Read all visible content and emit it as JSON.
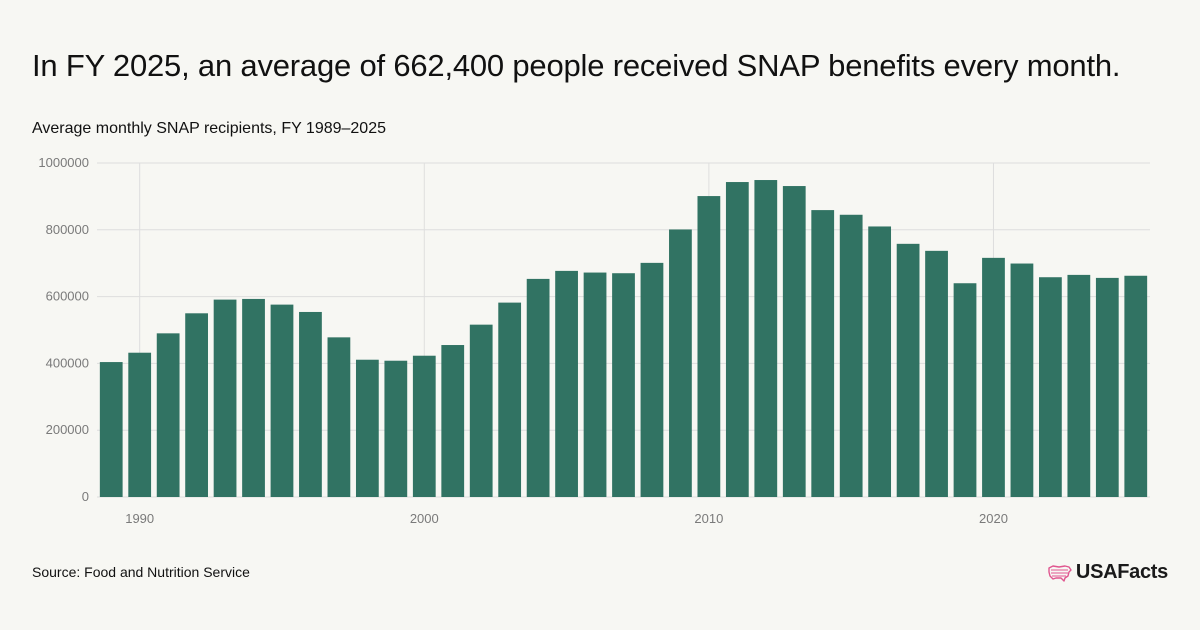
{
  "headline": "In FY 2025, an average of 662,400 people received SNAP benefits every month.",
  "chart_data": {
    "type": "bar",
    "title": "Average monthly SNAP recipients, FY 1989–2025",
    "xlabel": "",
    "ylabel": "",
    "x": [
      1989,
      1990,
      1991,
      1992,
      1993,
      1994,
      1995,
      1996,
      1997,
      1998,
      1999,
      2000,
      2001,
      2002,
      2003,
      2004,
      2005,
      2006,
      2007,
      2008,
      2009,
      2010,
      2011,
      2012,
      2013,
      2014,
      2015,
      2016,
      2017,
      2018,
      2019,
      2020,
      2021,
      2022,
      2023,
      2024,
      2025
    ],
    "values": [
      404000,
      432000,
      490000,
      550000,
      591000,
      593000,
      576000,
      554000,
      478000,
      411000,
      408000,
      423000,
      455000,
      516000,
      582000,
      653000,
      677000,
      672000,
      670000,
      701000,
      801000,
      901000,
      943000,
      949000,
      931000,
      859000,
      845000,
      810000,
      758000,
      737000,
      640000,
      716000,
      699000,
      658000,
      665000,
      656000,
      662400
    ],
    "x_ticks": [
      "1990",
      "2000",
      "2010",
      "2020"
    ],
    "x_tick_years": [
      1990,
      2000,
      2010,
      2020
    ],
    "y_ticks": [
      "0",
      "200000",
      "400000",
      "600000",
      "800000",
      "1000000"
    ],
    "ylim": [
      0,
      1000000
    ],
    "grid": true,
    "bar_color": "#317363"
  },
  "footer": {
    "source": "Source: Food and Nutrition Service",
    "logo_text": "USAFacts"
  },
  "colors": {
    "background": "#f7f7f3",
    "logo_accent": "#e0568f"
  }
}
